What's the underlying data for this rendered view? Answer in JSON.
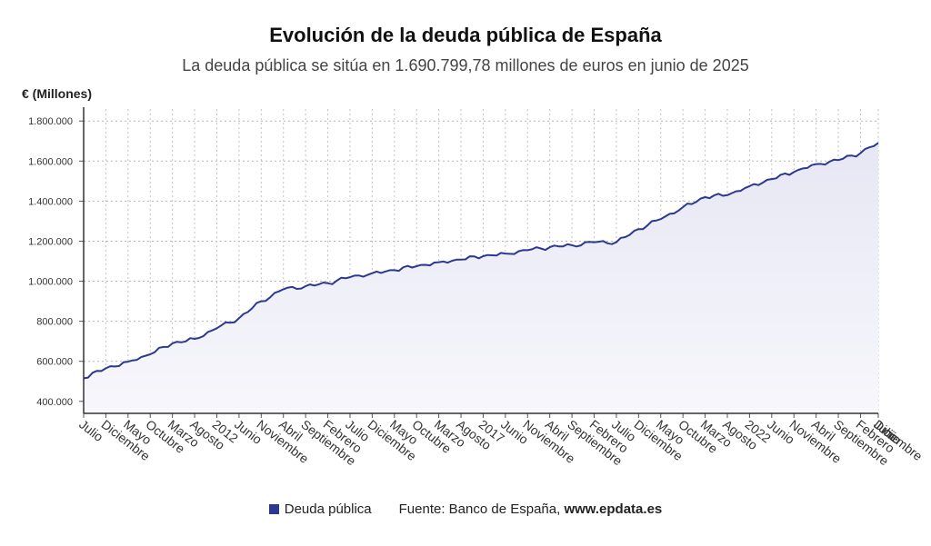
{
  "chart_data": {
    "type": "area",
    "title": "Evolución de la deuda pública de España",
    "subtitle": "La deuda pública se sitúa en 1.690.799,78 millones de euros en junio de 2025",
    "ylabel": "€ (Millones)",
    "ylim": [
      340000,
      1860000
    ],
    "yticks": [
      400000,
      600000,
      800000,
      1000000,
      1200000,
      1400000,
      1600000,
      1800000
    ],
    "ytick_labels": [
      "400.000",
      "600.000",
      "800.000",
      "1.000.000",
      "1.200.000",
      "1.400.000",
      "1.600.000",
      "1.800.000"
    ],
    "x_start": "2010-07",
    "x_end": "2025-06",
    "xtick_labels": [
      "Julio",
      "Diciembre",
      "Mayo",
      "Octubre",
      "Marzo",
      "Agosto",
      "2012",
      "Junio",
      "Noviembre",
      "Abril",
      "Septiembre",
      "Febrero",
      "Julio",
      "Diciembre",
      "Mayo",
      "Octubre",
      "Marzo",
      "Agosto",
      "2017",
      "Junio",
      "Noviembre",
      "Abril",
      "Septiembre",
      "Febrero",
      "Julio",
      "Diciembre",
      "Mayo",
      "Octubre",
      "Marzo",
      "Agosto",
      "2022",
      "Junio",
      "Noviembre",
      "Abril",
      "Septiembre",
      "Febrero",
      "Julio",
      "Diciembre",
      "Junio"
    ],
    "grid": true,
    "legend_position": "bottom",
    "series": [
      {
        "name": "Deuda pública",
        "color": "#2b3990",
        "anchors": [
          [
            "2010-07",
            515000
          ],
          [
            "2010-12",
            565000
          ],
          [
            "2011-05",
            598000
          ],
          [
            "2011-10",
            635000
          ],
          [
            "2012-03",
            690000
          ],
          [
            "2012-08",
            712000
          ],
          [
            "2013-01",
            765000
          ],
          [
            "2013-06",
            815000
          ],
          [
            "2013-11",
            900000
          ],
          [
            "2014-04",
            960000
          ],
          [
            "2014-09",
            975000
          ],
          [
            "2015-02",
            990000
          ],
          [
            "2015-07",
            1020000
          ],
          [
            "2015-12",
            1040000
          ],
          [
            "2016-05",
            1055000
          ],
          [
            "2016-10",
            1075000
          ],
          [
            "2017-03",
            1095000
          ],
          [
            "2017-08",
            1108000
          ],
          [
            "2018-01",
            1125000
          ],
          [
            "2018-06",
            1138000
          ],
          [
            "2018-11",
            1155000
          ],
          [
            "2019-04",
            1170000
          ],
          [
            "2019-09",
            1180000
          ],
          [
            "2020-02",
            1195000
          ],
          [
            "2020-07",
            1195000
          ],
          [
            "2020-12",
            1260000
          ],
          [
            "2021-05",
            1310000
          ],
          [
            "2021-10",
            1370000
          ],
          [
            "2022-03",
            1420000
          ],
          [
            "2022-08",
            1430000
          ],
          [
            "2023-01",
            1475000
          ],
          [
            "2023-06",
            1510000
          ],
          [
            "2023-11",
            1545000
          ],
          [
            "2024-04",
            1585000
          ],
          [
            "2024-09",
            1605000
          ],
          [
            "2025-02",
            1640000
          ],
          [
            "2025-06",
            1690800
          ]
        ]
      }
    ]
  },
  "legend": {
    "series_label": "Deuda pública",
    "source_prefix": "Fuente: Banco de España, ",
    "source_site": "www.epdata.es"
  }
}
